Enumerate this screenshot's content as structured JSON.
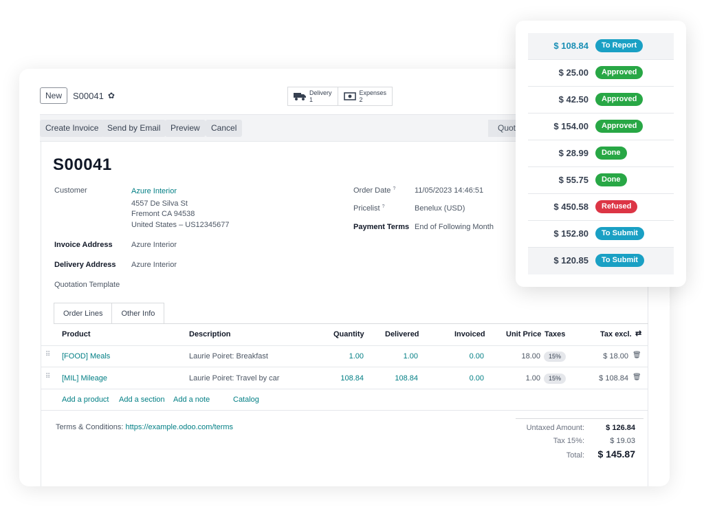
{
  "colors": {
    "link": "#017e84",
    "to_report": "#1aa0c4",
    "approved": "#28a745",
    "done": "#28a745",
    "refused": "#dc3545",
    "to_submit": "#1aa0c4"
  },
  "header": {
    "new_label": "New",
    "record_name": "S00041",
    "smart_buttons": [
      {
        "label": "Delivery",
        "count": "1",
        "icon": "truck-icon"
      },
      {
        "label": "Expenses",
        "count": "2",
        "icon": "money-icon"
      }
    ]
  },
  "actions": {
    "create_invoice": "Create Invoice",
    "send_by_email": "Send by Email",
    "preview": "Preview",
    "cancel": "Cancel",
    "status": "Quotation"
  },
  "form": {
    "title": "S00041",
    "customer_label": "Customer",
    "customer_name": "Azure Interior",
    "customer_address": [
      "4557 De Silva St",
      "Fremont CA 94538",
      "United States – US12345677"
    ],
    "invoice_address_label": "Invoice Address",
    "invoice_address": "Azure Interior",
    "delivery_address_label": "Delivery Address",
    "delivery_address": "Azure Interior",
    "quotation_template_label": "Quotation Template",
    "order_date_label": "Order Date",
    "order_date": "11/05/2023 14:46:51",
    "pricelist_label": "Pricelist",
    "pricelist": "Benelux (USD)",
    "payment_terms_label": "Payment Terms",
    "payment_terms": "End of Following Month",
    "help_mark": "?"
  },
  "tabs": [
    "Order Lines",
    "Other Info"
  ],
  "table": {
    "headers": {
      "product": "Product",
      "description": "Description",
      "quantity": "Quantity",
      "delivered": "Delivered",
      "invoiced": "Invoiced",
      "unit_price": "Unit Price",
      "taxes": "Taxes",
      "tax_excl": "Tax excl."
    },
    "rows": [
      {
        "product": "[FOOD] Meals",
        "description": "Laurie Poiret: Breakfast",
        "quantity": "1.00",
        "delivered": "1.00",
        "invoiced": "0.00",
        "unit_price": "18.00",
        "tax": "15%",
        "subtotal": "$ 18.00"
      },
      {
        "product": "[MIL] Mileage",
        "description": "Laurie Poiret: Travel by car",
        "quantity": "108.84",
        "delivered": "108.84",
        "invoiced": "0.00",
        "unit_price": "1.00",
        "tax": "15%",
        "subtotal": "$ 108.84"
      }
    ],
    "add_links": [
      "Add a product",
      "Add a section",
      "Add a note",
      "Catalog"
    ]
  },
  "footer": {
    "terms_label": "Terms & Conditions:",
    "terms_link": "https://example.odoo.com/terms",
    "untaxed_label": "Untaxed Amount:",
    "untaxed_value": "$ 126.84",
    "tax_label": "Tax 15%:",
    "tax_value": "$ 19.03",
    "total_label": "Total:",
    "total_value": "$ 145.87"
  },
  "expenses_popup": [
    {
      "amount": "$ 108.84",
      "status": "To Report",
      "color": "#1aa0c4"
    },
    {
      "amount": "$ 25.00",
      "status": "Approved",
      "color": "#28a745"
    },
    {
      "amount": "$ 42.50",
      "status": "Approved",
      "color": "#28a745"
    },
    {
      "amount": "$ 154.00",
      "status": "Approved",
      "color": "#28a745"
    },
    {
      "amount": "$ 28.99",
      "status": "Done",
      "color": "#28a745"
    },
    {
      "amount": "$ 55.75",
      "status": "Done",
      "color": "#28a745"
    },
    {
      "amount": "$ 450.58",
      "status": "Refused",
      "color": "#dc3545"
    },
    {
      "amount": "$ 152.80",
      "status": "To Submit",
      "color": "#1aa0c4"
    },
    {
      "amount": "$ 120.85",
      "status": "To Submit",
      "color": "#1aa0c4"
    }
  ]
}
